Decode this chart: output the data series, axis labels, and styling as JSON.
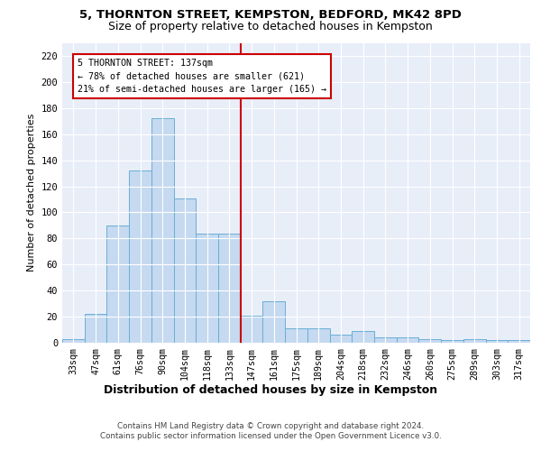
{
  "title1": "5, THORNTON STREET, KEMPSTON, BEDFORD, MK42 8PD",
  "title2": "Size of property relative to detached houses in Kempston",
  "xlabel": "Distribution of detached houses by size in Kempston",
  "ylabel": "Number of detached properties",
  "categories": [
    "33sqm",
    "47sqm",
    "61sqm",
    "76sqm",
    "90sqm",
    "104sqm",
    "118sqm",
    "133sqm",
    "147sqm",
    "161sqm",
    "175sqm",
    "189sqm",
    "204sqm",
    "218sqm",
    "232sqm",
    "246sqm",
    "260sqm",
    "275sqm",
    "289sqm",
    "303sqm",
    "317sqm"
  ],
  "values": [
    3,
    22,
    90,
    132,
    172,
    111,
    84,
    84,
    21,
    32,
    11,
    11,
    6,
    9,
    4,
    4,
    3,
    2,
    3,
    2,
    2
  ],
  "bar_color": "#c5d9f0",
  "bar_edge_color": "#6aaed6",
  "vline_x": 7.5,
  "annotation_text": "5 THORNTON STREET: 137sqm\n← 78% of detached houses are smaller (621)\n21% of semi-detached houses are larger (165) →",
  "annotation_box_color": "#ffffff",
  "annotation_box_edge_color": "#cc0000",
  "vline_color": "#cc0000",
  "ylim": [
    0,
    230
  ],
  "yticks": [
    0,
    20,
    40,
    60,
    80,
    100,
    120,
    140,
    160,
    180,
    200,
    220
  ],
  "background_color": "#e8eef8",
  "grid_color": "#ffffff",
  "footer_line1": "Contains HM Land Registry data © Crown copyright and database right 2024.",
  "footer_line2": "Contains public sector information licensed under the Open Government Licence v3.0."
}
